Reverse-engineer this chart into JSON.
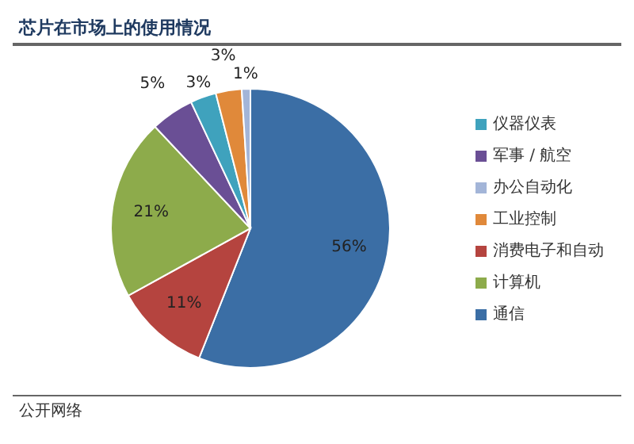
{
  "chart_data": {
    "type": "pie",
    "title": "芯片在市场上的使用情况",
    "categories": [
      "通信",
      "消费电子和自动",
      "计算机",
      "军事 / 航空",
      "仪器仪表",
      "工业控制",
      "办公自动化"
    ],
    "values": [
      56,
      11,
      21,
      5,
      3,
      3,
      1
    ],
    "value_labels": [
      "56%",
      "11%",
      "21%",
      "5%",
      "3%",
      "3%",
      "1%"
    ],
    "colors": [
      "#3b6ea5",
      "#b5443f",
      "#8dab4b",
      "#6a4f95",
      "#3fa2bd",
      "#e0893a",
      "#a3b5d8"
    ],
    "legend": "right",
    "annotations": [
      "公开网络"
    ]
  }
}
